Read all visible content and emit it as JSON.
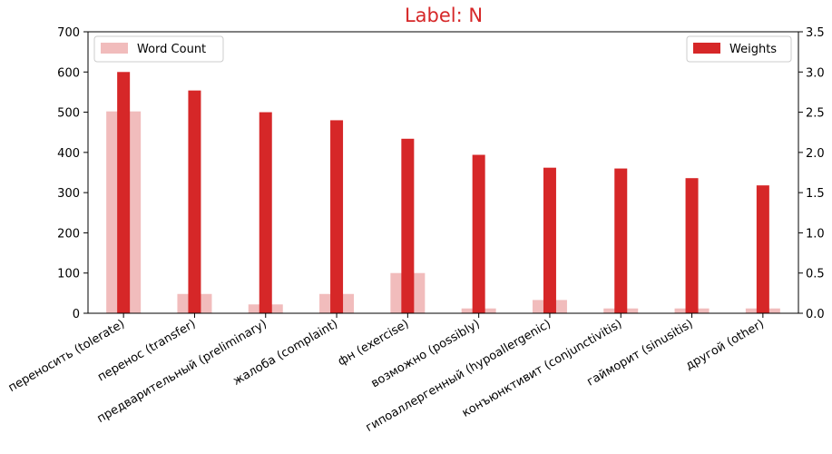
{
  "colors": {
    "weights": "#d62728",
    "word_count": "#f1bcbc",
    "title": "#d62728"
  },
  "chart_data": {
    "type": "bar",
    "title": "Label: N",
    "categories": [
      "переносить (tolerate)",
      "перенос (transfer)",
      "предварительный (preliminary)",
      "жалоба (complaint)",
      "фн (exercise)",
      "возможно (possibly)",
      "гипоаллергенный (hypoallergenic)",
      "конъюнктивит (conjunctivitis)",
      "гайморит (sinusitis)",
      "другой (other)"
    ],
    "series": [
      {
        "name": "Word Count",
        "axis": "left",
        "values": [
          502,
          48,
          22,
          48,
          100,
          12,
          33,
          12,
          12,
          12
        ]
      },
      {
        "name": "Weights",
        "axis": "right",
        "values": [
          3.0,
          2.77,
          2.5,
          2.4,
          2.17,
          1.97,
          1.81,
          1.8,
          1.68,
          1.59
        ]
      }
    ],
    "y_left": {
      "lim": [
        0,
        700
      ],
      "ticks": [
        "0",
        "100",
        "200",
        "300",
        "400",
        "500",
        "600",
        "700"
      ]
    },
    "y_right": {
      "lim": [
        0,
        3.5
      ],
      "ticks": [
        "0.0",
        "0.5",
        "1.0",
        "1.5",
        "2.0",
        "2.5",
        "3.0",
        "3.5"
      ]
    },
    "grid": false,
    "legends": [
      {
        "entry": "Word Count",
        "placement": "top-left"
      },
      {
        "entry": "Weights",
        "placement": "top-right"
      }
    ]
  }
}
